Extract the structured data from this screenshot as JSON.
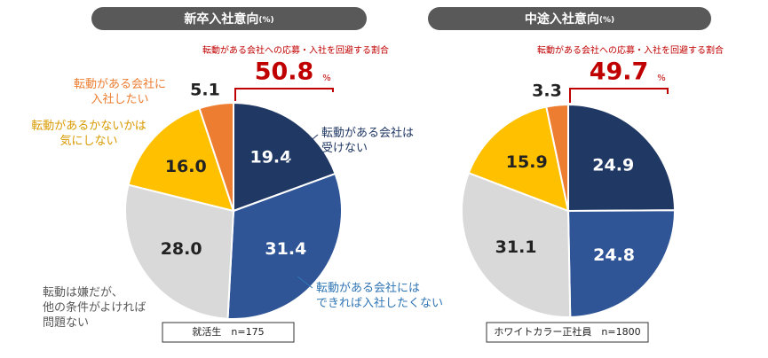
{
  "chart_data": [
    {
      "type": "pie",
      "title": "新卒入社意向",
      "unit": "(%)",
      "annotation": "転動がある会社への応募・入社を回避する割合",
      "highlight_value": 50.8,
      "highlight_unit": "%",
      "categories": [
        [
          "転動がある会社は",
          "受けない"
        ],
        [
          "転動がある会社には",
          "できれば入社したくない"
        ],
        [
          "転動は嫌だが、",
          "他の条件がよければ",
          "問題ない"
        ],
        [
          "転動があるかないかは",
          "気にしない"
        ],
        [
          "転動がある会社に",
          "入社したい"
        ]
      ],
      "values": [
        19.4,
        31.4,
        28.0,
        16.0,
        5.1
      ],
      "value_labels": [
        "19.4",
        "31.4",
        "28.0",
        "16.0",
        "5.1"
      ],
      "colors": [
        "#203864",
        "#2f5597",
        "#d9d9d9",
        "#ffc000",
        "#ed7d31"
      ],
      "note": "就活生　n=175"
    },
    {
      "type": "pie",
      "title": "中途入社意向",
      "unit": "(%)",
      "annotation": "転動がある会社への応募・入社を回避する割合",
      "highlight_value": 49.7,
      "highlight_unit": "%",
      "values": [
        24.9,
        24.8,
        31.1,
        15.9,
        3.3
      ],
      "value_labels": [
        "24.9",
        "24.8",
        "31.1",
        "15.9",
        "3.3"
      ],
      "colors": [
        "#203864",
        "#2f5597",
        "#d9d9d9",
        "#ffc000",
        "#ed7d31"
      ],
      "note": "ホワイトカラー正社員　n=1800"
    }
  ]
}
